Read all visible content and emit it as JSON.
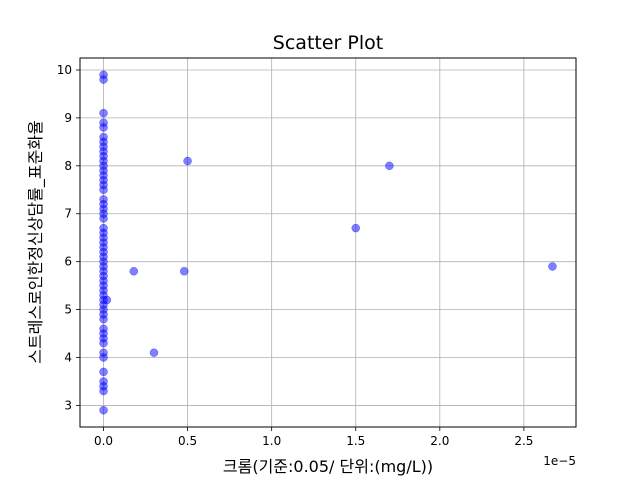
{
  "chart_data": {
    "type": "scatter",
    "title": "Scatter Plot",
    "xlabel": "크롬(기준:0.05/ 단위:(mg/L))",
    "ylabel": "스트레스로인한정신상담률_표준화율",
    "x_offset_text": "1e−5",
    "xlim": [
      -1.4e-06,
      2.81e-05
    ],
    "ylim": [
      2.55,
      10.25
    ],
    "x_ticks": [
      0,
      5e-06,
      1e-05,
      1.5e-05,
      2e-05,
      2.5e-05
    ],
    "x_tick_labels": [
      "0.0",
      "0.5",
      "1.0",
      "1.5",
      "2.0",
      "2.5"
    ],
    "y_ticks": [
      3,
      4,
      5,
      6,
      7,
      8,
      9,
      10
    ],
    "y_tick_labels": [
      "3",
      "4",
      "5",
      "6",
      "7",
      "8",
      "9",
      "10"
    ],
    "grid": true,
    "marker_color": "#0000ff",
    "marker_alpha": 0.5,
    "points": [
      [
        0,
        9.9
      ],
      [
        0,
        9.8
      ],
      [
        0,
        9.1
      ],
      [
        0,
        8.9
      ],
      [
        0,
        8.8
      ],
      [
        0,
        8.6
      ],
      [
        0,
        8.5
      ],
      [
        0,
        8.4
      ],
      [
        0,
        8.3
      ],
      [
        0,
        8.2
      ],
      [
        0,
        8.1
      ],
      [
        0,
        8.0
      ],
      [
        0,
        7.9
      ],
      [
        0,
        7.8
      ],
      [
        0,
        7.7
      ],
      [
        0,
        7.6
      ],
      [
        0,
        7.5
      ],
      [
        0,
        7.3
      ],
      [
        0,
        7.2
      ],
      [
        0,
        7.1
      ],
      [
        0,
        7.0
      ],
      [
        0,
        6.9
      ],
      [
        0,
        6.7
      ],
      [
        0,
        6.6
      ],
      [
        0,
        6.5
      ],
      [
        0,
        6.4
      ],
      [
        0,
        6.3
      ],
      [
        0,
        6.2
      ],
      [
        0,
        6.1
      ],
      [
        0,
        6.0
      ],
      [
        0,
        5.9
      ],
      [
        0,
        5.8
      ],
      [
        0,
        5.7
      ],
      [
        0,
        5.6
      ],
      [
        0,
        5.5
      ],
      [
        0,
        5.4
      ],
      [
        0,
        5.3
      ],
      [
        0,
        5.2
      ],
      [
        0,
        5.1
      ],
      [
        0,
        5.0
      ],
      [
        0,
        4.9
      ],
      [
        0,
        4.8
      ],
      [
        0,
        4.6
      ],
      [
        0,
        4.5
      ],
      [
        0,
        4.4
      ],
      [
        0,
        4.3
      ],
      [
        0,
        4.1
      ],
      [
        0,
        4.0
      ],
      [
        0,
        3.7
      ],
      [
        0,
        3.5
      ],
      [
        0,
        3.4
      ],
      [
        0,
        3.3
      ],
      [
        0,
        2.9
      ],
      [
        2e-07,
        5.2
      ],
      [
        1.8e-06,
        5.8
      ],
      [
        3e-06,
        4.1
      ],
      [
        4.8e-06,
        5.8
      ],
      [
        5e-06,
        8.1
      ],
      [
        1.5e-05,
        6.7
      ],
      [
        1.7e-05,
        8.0
      ],
      [
        2.67e-05,
        5.9
      ]
    ]
  }
}
